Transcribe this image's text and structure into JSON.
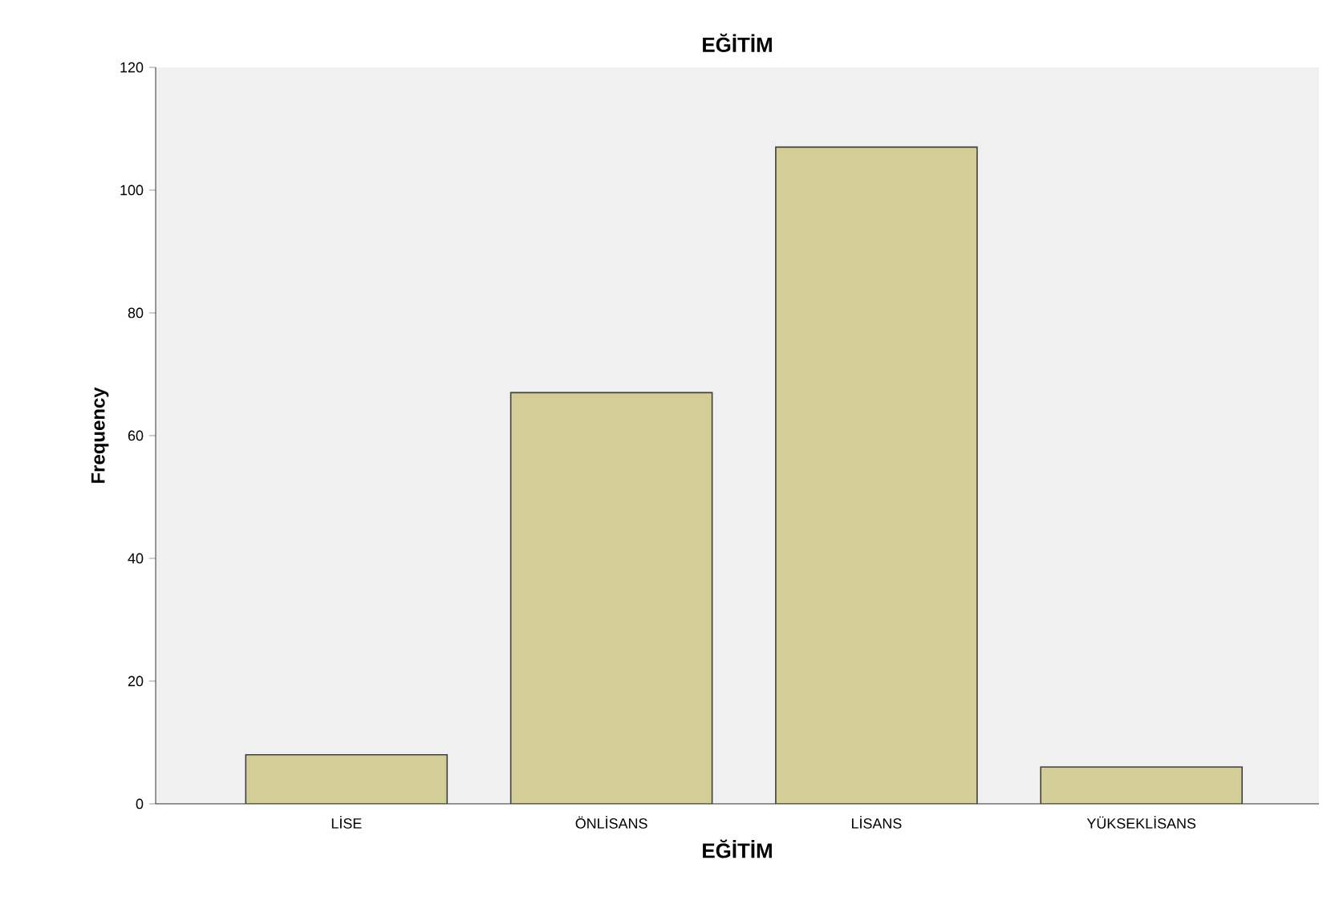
{
  "chart_data": {
    "type": "bar",
    "title": "EĞİTİM",
    "xlabel": "EĞİTİM",
    "ylabel": "Frequency",
    "categories": [
      "LİSE",
      "ÖNLİSANS",
      "LİSANS",
      "YÜKSEKLİSANS"
    ],
    "values": [
      8,
      67,
      107,
      6
    ],
    "color": "#d3ce97",
    "ylim": [
      0,
      120
    ],
    "yticks": [
      0,
      20,
      40,
      60,
      80,
      100,
      120
    ],
    "grid": false
  }
}
